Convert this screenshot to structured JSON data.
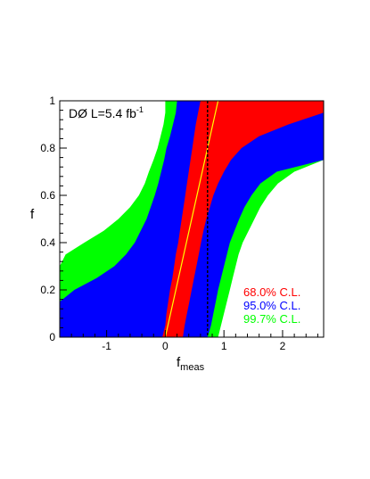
{
  "chart_data": {
    "type": "area",
    "title": "",
    "annotation": {
      "experiment": "DØ L=5.4 fb",
      "exponent": "-1"
    },
    "xlabel": "f",
    "xlabel_subscript": "meas",
    "ylabel": "f",
    "xlim": [
      -1.8,
      2.7
    ],
    "ylim": [
      0,
      1
    ],
    "x_ticks": [
      -1,
      0,
      1,
      2
    ],
    "x_tick_labels": [
      "-1",
      "0",
      "1",
      "2"
    ],
    "y_ticks": [
      0,
      0.2,
      0.4,
      0.6,
      0.8,
      1
    ],
    "y_tick_labels": [
      "0",
      "0.2",
      "0.4",
      "0.6",
      "0.8",
      "1"
    ],
    "grid": false,
    "legend_position": "bottom-right",
    "central_line": {
      "color": "#ffff00",
      "points": [
        [
          0.0,
          0.0
        ],
        [
          0.9,
          1.0
        ]
      ]
    },
    "measured_value_line": {
      "x": 0.72,
      "style": "dashed",
      "color": "#000000"
    },
    "series": [
      {
        "name": "99.7% C.L.",
        "color": "#00ff00",
        "f": [
          0,
          0.05,
          0.1,
          0.15,
          0.2,
          0.25,
          0.3,
          0.35,
          0.4,
          0.45,
          0.5,
          0.55,
          0.6,
          0.65,
          0.7,
          0.75,
          0.8,
          0.85,
          0.9,
          0.95,
          1.0
        ],
        "lower": [
          -1.8,
          -1.8,
          -1.8,
          -1.8,
          -1.8,
          -1.8,
          -1.8,
          -1.7,
          -1.38,
          -1.05,
          -0.8,
          -0.6,
          -0.45,
          -0.35,
          -0.28,
          -0.2,
          -0.13,
          -0.08,
          -0.03,
          0.0,
          0.0
        ],
        "upper": [
          0.9,
          0.95,
          1.0,
          1.05,
          1.1,
          1.15,
          1.2,
          1.25,
          1.32,
          1.42,
          1.52,
          1.62,
          1.75,
          1.92,
          2.2,
          2.7,
          2.7,
          2.7,
          2.7,
          2.7,
          2.7
        ]
      },
      {
        "name": "95.0% C.L.",
        "color": "#0000ff",
        "f": [
          0,
          0.05,
          0.1,
          0.15,
          0.2,
          0.25,
          0.3,
          0.35,
          0.4,
          0.45,
          0.5,
          0.55,
          0.6,
          0.65,
          0.7,
          0.75,
          0.8,
          0.85,
          0.9,
          0.95,
          1.0
        ],
        "lower": [
          -1.8,
          -1.8,
          -1.8,
          -1.8,
          -1.55,
          -1.17,
          -0.87,
          -0.67,
          -0.52,
          -0.42,
          -0.32,
          -0.25,
          -0.18,
          -0.12,
          -0.07,
          -0.02,
          0.02,
          0.08,
          0.13,
          0.18,
          0.2
        ],
        "upper": [
          0.72,
          0.78,
          0.82,
          0.86,
          0.9,
          0.95,
          1.0,
          1.05,
          1.1,
          1.18,
          1.26,
          1.35,
          1.47,
          1.62,
          1.9,
          2.7,
          2.7,
          2.7,
          2.7,
          2.7,
          2.7
        ]
      },
      {
        "name": "68.0% C.L.",
        "color": "#ff0000",
        "f": [
          0,
          0.05,
          0.1,
          0.15,
          0.2,
          0.25,
          0.3,
          0.35,
          0.4,
          0.45,
          0.5,
          0.55,
          0.6,
          0.65,
          0.7,
          0.75,
          0.8,
          0.85,
          0.9,
          0.95,
          1.0
        ],
        "lower": [
          -0.05,
          0.0,
          0.02,
          0.05,
          0.08,
          0.12,
          0.15,
          0.18,
          0.22,
          0.25,
          0.28,
          0.31,
          0.34,
          0.37,
          0.4,
          0.43,
          0.46,
          0.49,
          0.52,
          0.56,
          0.6
        ],
        "upper": [
          0.3,
          0.33,
          0.37,
          0.41,
          0.45,
          0.49,
          0.53,
          0.57,
          0.61,
          0.65,
          0.7,
          0.76,
          0.82,
          0.9,
          1.0,
          1.12,
          1.3,
          1.6,
          2.1,
          2.7,
          2.7
        ]
      }
    ]
  }
}
